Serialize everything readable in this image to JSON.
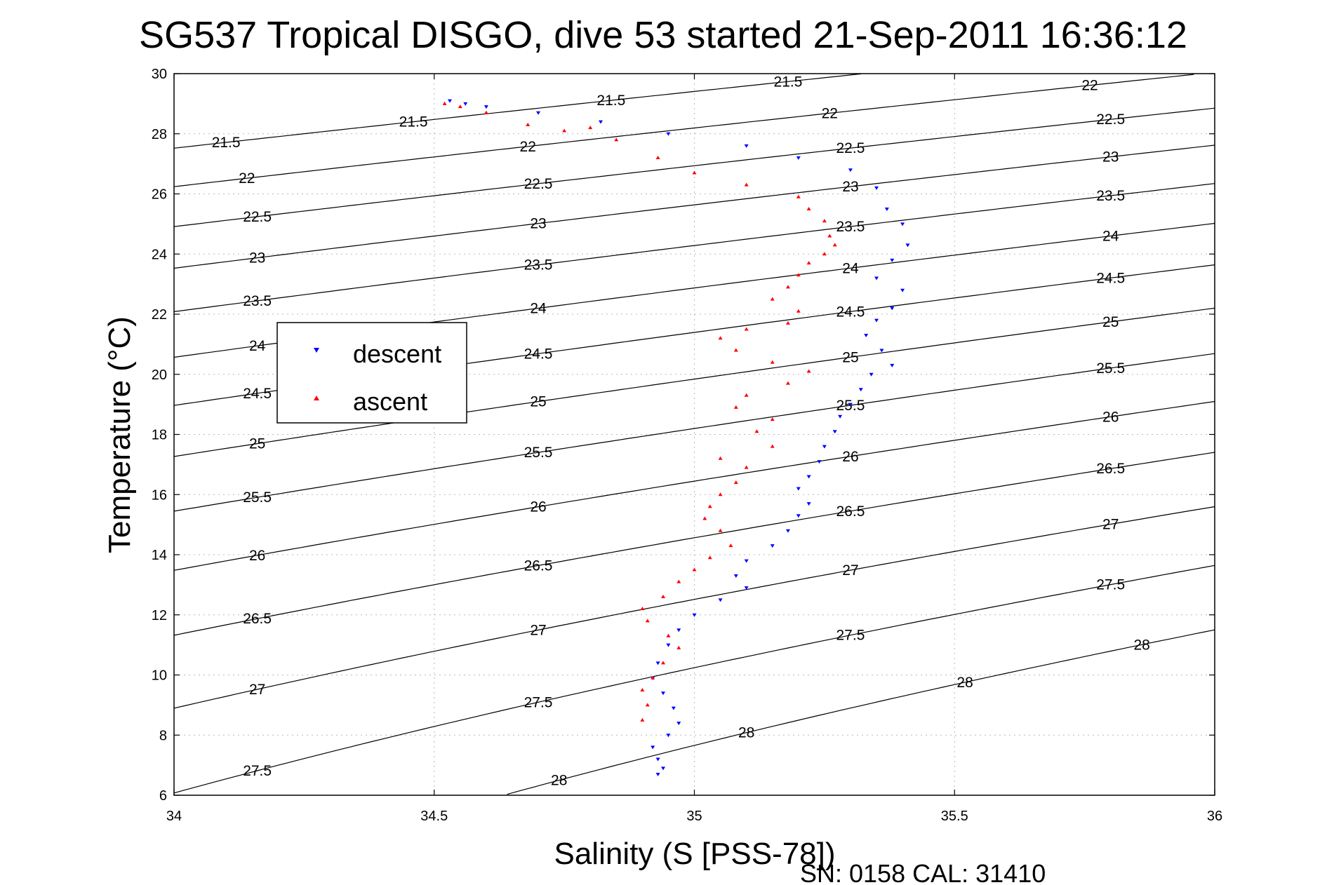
{
  "chart_data": {
    "type": "scatter",
    "title": "SG537 Tropical DISGO, dive 53 started 21-Sep-2011 16:36:12",
    "xlabel": "Salinity (S [PSS-78])",
    "ylabel": "Temperature (°C)",
    "xlim": [
      34,
      36
    ],
    "ylim": [
      6,
      30
    ],
    "x_ticks": [
      34,
      34.5,
      35,
      35.5,
      36
    ],
    "x_tick_labels": [
      "34",
      "34.5",
      "35",
      "35.5",
      "36"
    ],
    "y_ticks": [
      6,
      8,
      10,
      12,
      14,
      16,
      18,
      20,
      22,
      24,
      26,
      28,
      30
    ],
    "y_tick_labels": [
      "6",
      "8",
      "10",
      "12",
      "14",
      "16",
      "18",
      "20",
      "22",
      "24",
      "26",
      "28",
      "30"
    ],
    "grid": true,
    "legend_position": "upper-left",
    "contour_levels": [
      "21.5",
      "22",
      "22.5",
      "23",
      "23.5",
      "24",
      "24.5",
      "25",
      "25.5",
      "26",
      "26.5",
      "27",
      "27.5",
      "28"
    ],
    "series": [
      {
        "name": "descent",
        "color": "#0000ff",
        "marker": "triangle-down",
        "x": [
          34.53,
          34.56,
          34.6,
          34.7,
          34.82,
          34.95,
          35.1,
          35.2,
          35.3,
          35.35,
          35.37,
          35.4,
          35.41,
          35.38,
          35.35,
          35.4,
          35.38,
          35.35,
          35.33,
          35.36,
          35.38,
          35.34,
          35.32,
          35.3,
          35.28,
          35.27,
          35.25,
          35.24,
          35.22,
          35.2,
          35.22,
          35.2,
          35.18,
          35.15,
          35.1,
          35.08,
          35.1,
          35.05,
          35.0,
          34.97,
          34.95,
          34.93,
          34.92,
          34.94,
          34.96,
          34.97,
          34.95,
          34.92,
          34.93,
          34.94,
          34.93
        ],
        "y": [
          29.1,
          29.0,
          28.9,
          28.7,
          28.4,
          28.0,
          27.6,
          27.2,
          26.8,
          26.2,
          25.5,
          25.0,
          24.3,
          23.8,
          23.2,
          22.8,
          22.2,
          21.8,
          21.3,
          20.8,
          20.3,
          20.0,
          19.5,
          19.0,
          18.6,
          18.1,
          17.6,
          17.1,
          16.6,
          16.2,
          15.7,
          15.3,
          14.8,
          14.3,
          13.8,
          13.3,
          12.9,
          12.5,
          12.0,
          11.5,
          11.0,
          10.4,
          9.9,
          9.4,
          8.9,
          8.4,
          8.0,
          7.6,
          7.2,
          6.9,
          6.7
        ]
      },
      {
        "name": "ascent",
        "color": "#ff0000",
        "marker": "triangle-up",
        "x": [
          34.52,
          34.55,
          34.6,
          34.68,
          34.75,
          34.8,
          34.85,
          34.93,
          35.0,
          35.1,
          35.2,
          35.22,
          35.25,
          35.26,
          35.27,
          35.25,
          35.22,
          35.2,
          35.18,
          35.15,
          35.2,
          35.18,
          35.1,
          35.05,
          35.08,
          35.15,
          35.22,
          35.18,
          35.1,
          35.08,
          35.15,
          35.12,
          35.15,
          35.05,
          35.1,
          35.08,
          35.05,
          35.03,
          35.02,
          35.05,
          35.07,
          35.03,
          35.0,
          34.97,
          34.94,
          34.9,
          34.91,
          34.95,
          34.97,
          34.94,
          34.92,
          34.9,
          34.91,
          34.9
        ],
        "y": [
          29.0,
          28.9,
          28.7,
          28.3,
          28.1,
          28.2,
          27.8,
          27.2,
          26.7,
          26.3,
          25.9,
          25.5,
          25.1,
          24.6,
          24.3,
          24.0,
          23.7,
          23.3,
          22.9,
          22.5,
          22.1,
          21.7,
          21.5,
          21.2,
          20.8,
          20.4,
          20.1,
          19.7,
          19.3,
          18.9,
          18.5,
          18.1,
          17.6,
          17.2,
          16.9,
          16.4,
          16.0,
          15.6,
          15.2,
          14.8,
          14.3,
          13.9,
          13.5,
          13.1,
          12.6,
          12.2,
          11.8,
          11.3,
          10.9,
          10.4,
          9.9,
          9.5,
          9.0,
          8.5
        ]
      }
    ]
  },
  "footer": {
    "serial": "SN: 0158  CAL: 31410"
  }
}
